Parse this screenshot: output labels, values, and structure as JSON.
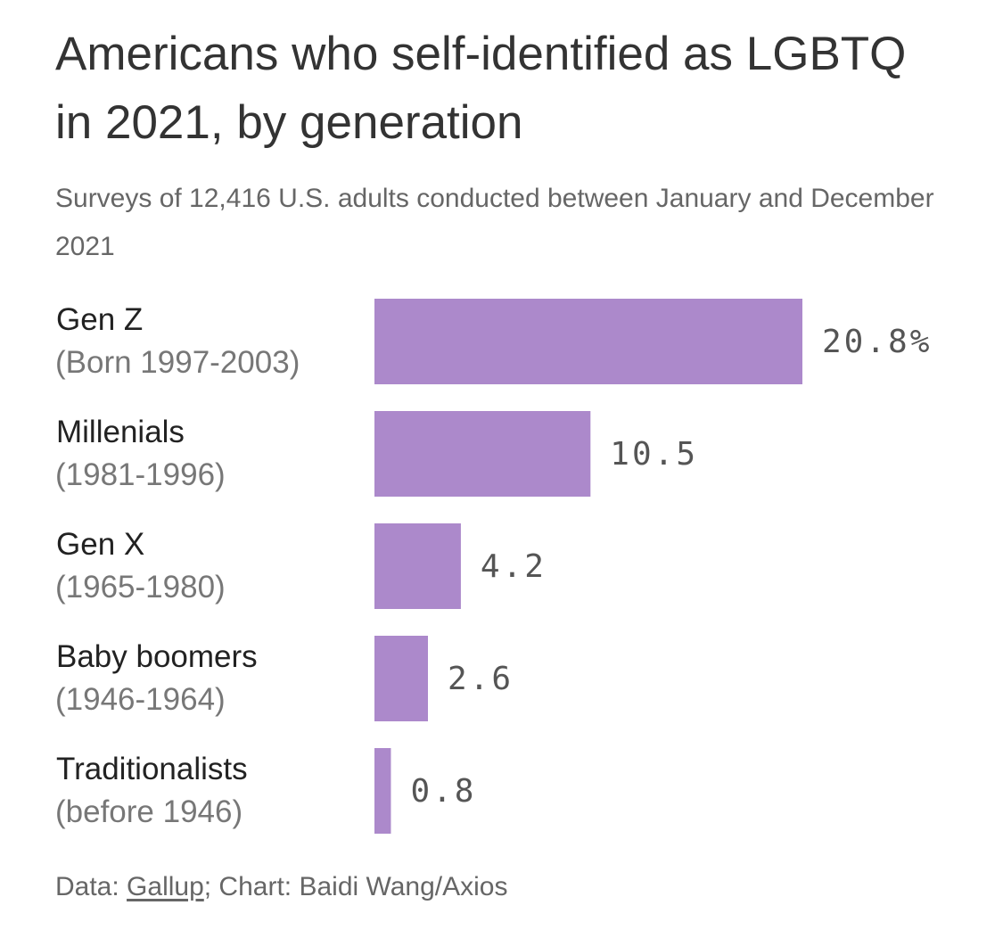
{
  "title": "Americans who self-identified as LGBTQ in 2021, by generation",
  "subtitle": "Surveys of 12,416 U.S. adults conducted between January and December 2021",
  "footer": {
    "data_prefix": "Data: ",
    "source": "Gallup",
    "chart_credit": "; Chart: Baidi Wang/Axios"
  },
  "colors": {
    "bar": "#ac89cb"
  },
  "chart_data": {
    "type": "bar",
    "orientation": "horizontal",
    "categories": [
      "Gen Z (Born 1997-2003)",
      "Millenials (1981-1996)",
      "Gen X (1965-1980)",
      "Baby boomers (1946-1964)",
      "Traditionalists (before 1946)"
    ],
    "category_names": [
      "Gen Z",
      "Millenials",
      "Gen X",
      "Baby boomers",
      "Traditionalists"
    ],
    "category_years": [
      "(Born 1997-2003)",
      "(1981-1996)",
      "(1965-1980)",
      "(1946-1964)",
      "(before 1946)"
    ],
    "values": [
      20.8,
      10.5,
      4.2,
      2.6,
      0.8
    ],
    "data_labels": [
      "20.8%",
      "10.5",
      "4.2",
      "2.6",
      "0.8"
    ],
    "title": "Americans who self-identified as LGBTQ in 2021, by generation",
    "subtitle": "Surveys of 12,416 U.S. adults conducted between January and December 2021",
    "xlabel": "",
    "ylabel": "",
    "xlim": [
      0,
      20.8
    ],
    "grid": false,
    "legend": "none"
  }
}
